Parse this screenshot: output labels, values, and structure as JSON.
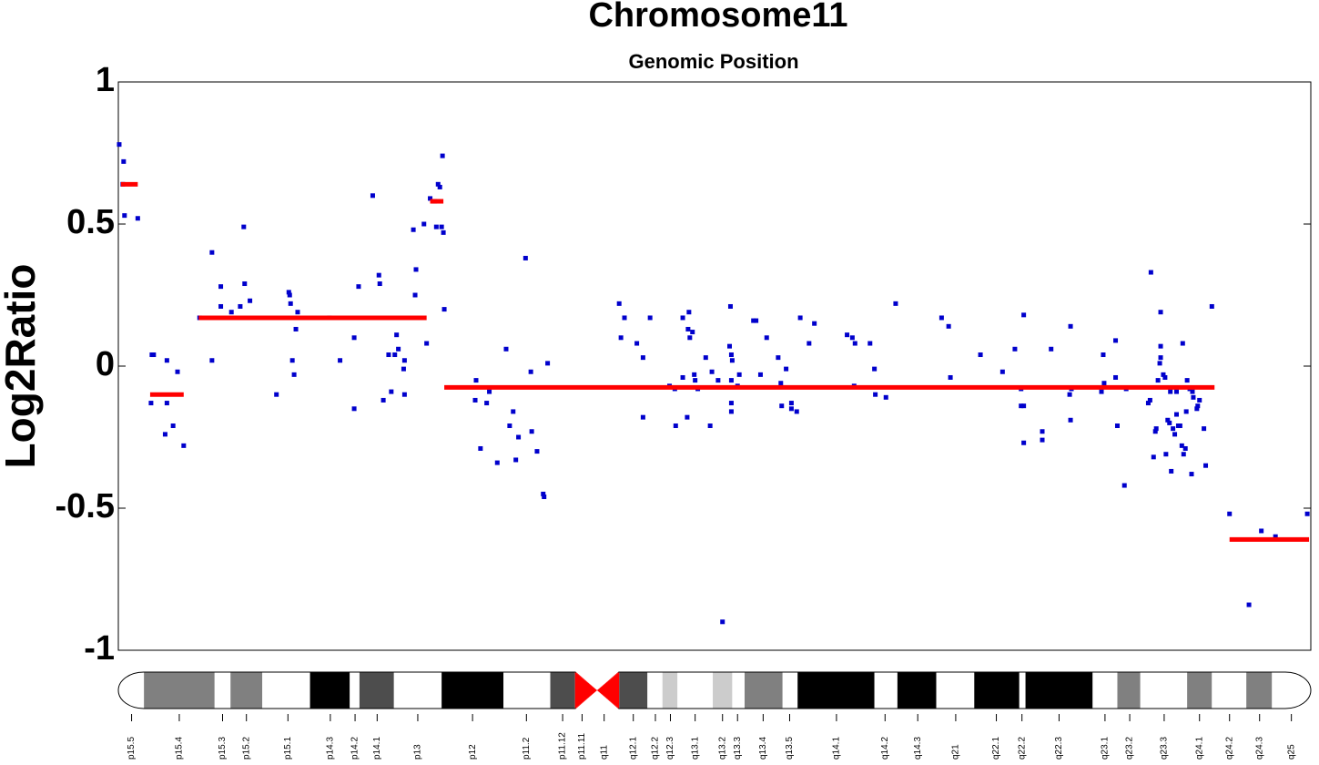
{
  "chart_data": {
    "type": "scatter",
    "title": "Chromosome11",
    "subtitle": "Genomic Position",
    "ylabel": "Log2Ratio",
    "xlim": [
      0,
      135
    ],
    "ylim": [
      -1,
      1
    ],
    "yticks": [
      1,
      0.5,
      0,
      -0.5,
      -1
    ],
    "color": "#0000cc",
    "x": [
      0.1,
      0.6,
      0.5,
      0.7,
      2.2,
      3.7,
      3.8,
      4.0,
      5.3,
      5.5,
      5.5,
      6.2,
      6.7,
      7.4,
      9.2,
      10.6,
      10.6,
      11.6,
      11.6,
      12.8,
      13.8,
      14.2,
      14.3,
      14.9,
      17.9,
      19.3,
      19.4,
      19.5,
      19.7,
      19.9,
      20.1,
      20.3,
      23.9,
      25.1,
      26.7,
      26.7,
      27.2,
      28.8,
      29.5,
      29.6,
      30.0,
      30.6,
      30.9,
      31.3,
      31.5,
      31.7,
      32.3,
      32.4,
      32.4,
      33.4,
      33.6,
      33.7,
      34.6,
      34.9,
      35.3,
      35.8,
      36.0,
      36.2,
      36.4,
      36.6,
      36.7,
      36.8,
      36.9,
      40.5,
      40.4,
      41.0,
      41.7,
      42.0,
      42.9,
      43.9,
      44.3,
      44.7,
      45.0,
      45.3,
      46.1,
      46.7,
      46.8,
      47.4,
      48.1,
      48.2,
      48.6,
      56.7,
      56.9,
      57.3,
      58.7,
      59.4,
      59.4,
      60.2,
      62.4,
      63.0,
      63.1,
      63.9,
      63.9,
      64.4,
      64.5,
      64.6,
      64.7,
      65.0,
      65.2,
      65.3,
      65.6,
      66.5,
      67.0,
      67.2,
      67.9,
      68.4,
      69.2,
      69.3,
      69.4,
      69.4,
      69.4,
      69.4,
      69.5,
      70.1,
      70.3,
      71.9,
      72.2,
      72.7,
      73.4,
      74.7,
      75.0,
      75.1,
      75.6,
      76.2,
      76.2,
      76.8,
      77.2,
      78.2,
      78.8,
      82.5,
      83.1,
      83.3,
      83.4,
      85.1,
      85.6,
      85.7,
      86.9,
      88.0,
      93.2,
      94.0,
      94.2,
      97.6,
      100.1,
      101.5,
      102.2,
      102.2,
      102.5,
      102.5,
      102.5,
      104.6,
      104.6,
      105.6,
      107.7,
      107.8,
      107.9,
      107.8,
      111.3,
      111.5,
      111.6,
      112.9,
      112.9,
      113.1,
      113.9,
      114.1,
      116.6,
      116.8,
      116.9,
      117.2,
      117.4,
      117.5,
      117.7,
      117.9,
      118.0,
      118.0,
      118.0,
      118.3,
      118.5,
      118.6,
      118.8,
      119.0,
      119.1,
      119.2,
      119.4,
      119.6,
      119.8,
      119.8,
      120.0,
      120.2,
      120.4,
      120.5,
      120.6,
      120.8,
      120.9,
      121.0,
      121.3,
      121.5,
      121.6,
      121.7,
      122.1,
      122.2,
      122.4,
      122.9,
      123.1,
      123.8,
      125.8,
      128.0,
      129.4,
      131.0,
      134.6
    ],
    "values": [
      0.78,
      0.72,
      0.64,
      0.53,
      0.52,
      -0.13,
      0.04,
      0.04,
      -0.24,
      0.02,
      -0.13,
      -0.21,
      -0.02,
      -0.28,
      0.17,
      0.4,
      0.02,
      0.28,
      0.21,
      0.19,
      0.21,
      0.49,
      0.29,
      0.23,
      -0.1,
      0.26,
      0.25,
      0.22,
      0.02,
      -0.03,
      0.13,
      0.19,
      0.17,
      0.02,
      -0.15,
      0.1,
      0.28,
      0.6,
      0.32,
      0.29,
      -0.12,
      0.04,
      -0.09,
      0.04,
      0.11,
      0.06,
      -0.01,
      0.02,
      -0.1,
      0.48,
      0.25,
      0.34,
      0.5,
      0.08,
      0.59,
      0.58,
      0.49,
      0.64,
      0.63,
      0.49,
      0.74,
      0.47,
      0.2,
      -0.05,
      -0.12,
      -0.29,
      -0.13,
      -0.09,
      -0.34,
      0.06,
      -0.21,
      -0.16,
      -0.33,
      -0.25,
      0.38,
      -0.02,
      -0.23,
      -0.3,
      -0.45,
      -0.46,
      0.01,
      0.22,
      0.1,
      0.17,
      0.08,
      0.03,
      -0.18,
      0.17,
      -0.07,
      -0.08,
      -0.21,
      0.17,
      -0.04,
      -0.18,
      0.13,
      0.19,
      0.1,
      0.12,
      -0.03,
      -0.05,
      -0.08,
      0.03,
      -0.21,
      -0.02,
      -0.05,
      -0.9,
      0.07,
      0.21,
      0.04,
      -0.05,
      -0.13,
      -0.16,
      0.02,
      -0.07,
      -0.03,
      0.16,
      0.16,
      -0.03,
      0.1,
      0.03,
      -0.06,
      -0.14,
      -0.01,
      -0.13,
      -0.15,
      -0.16,
      0.17,
      0.08,
      0.15,
      0.11,
      0.1,
      -0.07,
      0.08,
      0.08,
      -0.01,
      -0.1,
      -0.11,
      0.22,
      0.17,
      0.14,
      -0.04,
      0.04,
      -0.02,
      0.06,
      -0.08,
      -0.14,
      0.18,
      -0.14,
      -0.27,
      -0.23,
      -0.26,
      0.06,
      -0.1,
      0.14,
      -0.08,
      -0.19,
      -0.09,
      0.04,
      -0.06,
      0.09,
      -0.04,
      -0.21,
      -0.42,
      -0.08,
      -0.13,
      -0.12,
      0.33,
      -0.32,
      -0.23,
      -0.22,
      -0.05,
      0.01,
      0.19,
      0.07,
      0.03,
      -0.03,
      -0.04,
      -0.31,
      -0.19,
      -0.2,
      -0.09,
      -0.37,
      -0.22,
      -0.24,
      -0.09,
      -0.17,
      -0.21,
      -0.21,
      -0.28,
      0.08,
      -0.31,
      -0.29,
      -0.16,
      -0.05,
      -0.08,
      -0.38,
      -0.09,
      -0.11,
      -0.15,
      -0.14,
      -0.12,
      -0.22,
      -0.35,
      0.21,
      -0.52,
      -0.84,
      -0.58,
      -0.6,
      -0.52
    ],
    "segments": {
      "color": "#ff0000",
      "starts": [
        0.3,
        3.6,
        9.1,
        35.3,
        36.9,
        125.8
      ],
      "ends": [
        2.2,
        7.4,
        34.9,
        36.8,
        124.1,
        134.8
      ],
      "values": [
        0.64,
        -0.1,
        0.17,
        0.58,
        -0.075,
        -0.61
      ]
    }
  },
  "ideogram": {
    "bands": [
      {
        "start": 0,
        "end": 2.9,
        "color": "#ffffff"
      },
      {
        "start": 2.9,
        "end": 10.9,
        "color": "#808080"
      },
      {
        "start": 10.9,
        "end": 12.7,
        "color": "#ffffff"
      },
      {
        "start": 12.7,
        "end": 16.3,
        "color": "#808080"
      },
      {
        "start": 16.3,
        "end": 21.7,
        "color": "#ffffff"
      },
      {
        "start": 21.7,
        "end": 26.2,
        "color": "#000000"
      },
      {
        "start": 26.2,
        "end": 27.3,
        "color": "#ffffff"
      },
      {
        "start": 27.3,
        "end": 31.2,
        "color": "#4d4d4d"
      },
      {
        "start": 31.2,
        "end": 36.6,
        "color": "#ffffff"
      },
      {
        "start": 36.6,
        "end": 43.6,
        "color": "#000000"
      },
      {
        "start": 43.6,
        "end": 48.9,
        "color": "#ffffff"
      },
      {
        "start": 48.9,
        "end": 51.7,
        "color": "#4d4d4d"
      },
      {
        "start": 56.7,
        "end": 59.9,
        "color": "#4d4d4d"
      },
      {
        "start": 59.9,
        "end": 61.6,
        "color": "#ffffff"
      },
      {
        "start": 61.6,
        "end": 63.3,
        "color": "#cccccc"
      },
      {
        "start": 63.3,
        "end": 67.3,
        "color": "#ffffff"
      },
      {
        "start": 67.3,
        "end": 69.5,
        "color": "#cccccc"
      },
      {
        "start": 69.5,
        "end": 70.9,
        "color": "#ffffff"
      },
      {
        "start": 70.9,
        "end": 75.2,
        "color": "#808080"
      },
      {
        "start": 75.2,
        "end": 76.9,
        "color": "#ffffff"
      },
      {
        "start": 76.9,
        "end": 85.6,
        "color": "#000000"
      },
      {
        "start": 85.6,
        "end": 88.2,
        "color": "#ffffff"
      },
      {
        "start": 88.2,
        "end": 92.6,
        "color": "#000000"
      },
      {
        "start": 92.6,
        "end": 96.9,
        "color": "#ffffff"
      },
      {
        "start": 96.9,
        "end": 102.0,
        "color": "#000000"
      },
      {
        "start": 102.0,
        "end": 102.7,
        "color": "#ffffff"
      },
      {
        "start": 102.7,
        "end": 110.3,
        "color": "#000000"
      },
      {
        "start": 110.3,
        "end": 113.1,
        "color": "#ffffff"
      },
      {
        "start": 113.1,
        "end": 115.7,
        "color": "#808080"
      },
      {
        "start": 115.7,
        "end": 121.0,
        "color": "#ffffff"
      },
      {
        "start": 121.0,
        "end": 123.8,
        "color": "#808080"
      },
      {
        "start": 123.8,
        "end": 127.7,
        "color": "#ffffff"
      },
      {
        "start": 127.7,
        "end": 130.6,
        "color": "#808080"
      },
      {
        "start": 130.6,
        "end": 135,
        "color": "#ffffff"
      }
    ],
    "centromere": {
      "start": 51.7,
      "end": 56.7,
      "color": "#ff0000"
    },
    "labels": [
      {
        "label": "p15.5",
        "position": 1.5
      },
      {
        "label": "p15.4",
        "position": 6.9
      },
      {
        "label": "p15.3",
        "position": 11.8
      },
      {
        "label": "p15.2",
        "position": 14.5
      },
      {
        "label": "p15.1",
        "position": 19.2
      },
      {
        "label": "p14.3",
        "position": 24.0
      },
      {
        "label": "p14.2",
        "position": 26.8
      },
      {
        "label": "p14.1",
        "position": 29.3
      },
      {
        "label": "p13",
        "position": 33.9
      },
      {
        "label": "p12",
        "position": 40.1
      },
      {
        "label": "p11.2",
        "position": 46.2
      },
      {
        "label": "p11.12",
        "position": 50.3
      },
      {
        "label": "p11.11",
        "position": 52.5
      },
      {
        "label": "q11",
        "position": 55.0
      },
      {
        "label": "q12.1",
        "position": 58.3
      },
      {
        "label": "q12.2",
        "position": 60.8
      },
      {
        "label": "q12.3",
        "position": 62.5
      },
      {
        "label": "q13.1",
        "position": 65.3
      },
      {
        "label": "q13.2",
        "position": 68.4
      },
      {
        "label": "q13.3",
        "position": 70.1
      },
      {
        "label": "q13.4",
        "position": 73.0
      },
      {
        "label": "q13.5",
        "position": 76.0
      },
      {
        "label": "q14.1",
        "position": 81.3
      },
      {
        "label": "q14.2",
        "position": 86.8
      },
      {
        "label": "q14.3",
        "position": 90.5
      },
      {
        "label": "q21",
        "position": 94.8
      },
      {
        "label": "q22.1",
        "position": 99.4
      },
      {
        "label": "q22.2",
        "position": 102.3
      },
      {
        "label": "q22.3",
        "position": 106.5
      },
      {
        "label": "q23.1",
        "position": 111.7
      },
      {
        "label": "q23.2",
        "position": 114.5
      },
      {
        "label": "q23.3",
        "position": 118.4
      },
      {
        "label": "q24.1",
        "position": 122.4
      },
      {
        "label": "q24.2",
        "position": 125.8
      },
      {
        "label": "q24.3",
        "position": 129.2
      },
      {
        "label": "q25",
        "position": 132.8
      }
    ]
  }
}
